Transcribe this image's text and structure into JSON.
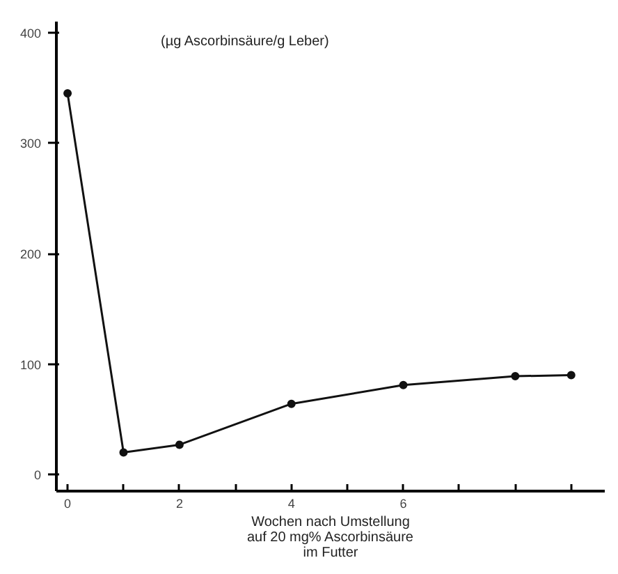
{
  "chart_data": {
    "type": "line",
    "ylabel": "(µg Ascorbinsäure/g Leber)",
    "xlabel": "Wochen nach Umstellung\nauf 20 mg% Ascorbinsäure\nim Futter",
    "x": [
      0,
      1,
      2,
      4,
      6,
      8,
      9
    ],
    "series": [
      {
        "color": "#111111",
        "values": [
          345,
          20,
          27,
          64,
          81,
          89,
          90
        ]
      }
    ],
    "xlim": [
      -0.2,
      9.6
    ],
    "ylim": [
      -15,
      410
    ],
    "xticks": [
      0,
      {
        "value": 1,
        "label": null
      },
      2,
      {
        "value": 3,
        "label": null
      },
      4,
      {
        "value": 5,
        "label": null
      },
      6,
      {
        "value": 7,
        "label": null
      },
      {
        "value": 8,
        "label": null
      },
      {
        "value": 9,
        "label": null
      }
    ],
    "yticks": [
      0,
      100,
      200,
      300,
      400
    ],
    "grid": false,
    "marker": "circle",
    "line_style": "solid"
  }
}
